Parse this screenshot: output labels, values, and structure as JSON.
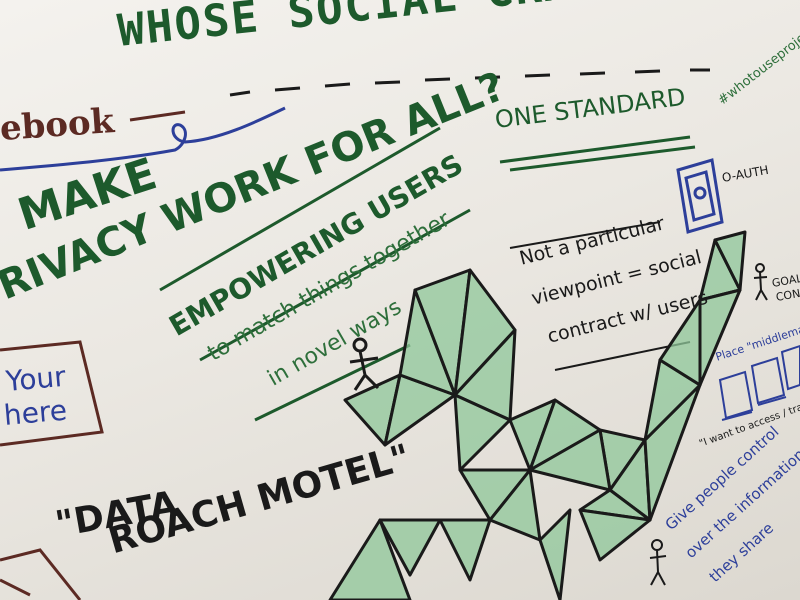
{
  "board": {
    "title": "WHOSE SOCIAL GRAPH IS IT?",
    "top_right_handle": "#whotouseproject",
    "facebook_fragment": "ebook",
    "privacy_heading_line1": "MAKE",
    "privacy_heading_line2": "RIVACY WORK FOR ALL?",
    "one_standard": "ONE STANDARD",
    "oauth_label": "O-AUTH",
    "empowering_title": "EMPOWERING USERS",
    "empowering_line2": "to match things together",
    "empowering_line3": "in novel ways",
    "viewpoint_line1": "Not a particular",
    "viewpoint_line2": "viewpoint = social",
    "viewpoint_line3": "contract w/ users",
    "goal_label": "GOAL",
    "goal_sub": "CONN",
    "middleman_note": "Place \"middleman\" to",
    "access_quote": "\"I want to access / transform",
    "your_here_line1": "Your",
    "your_here_line2": "here",
    "data_roach_line1": "\"DATA",
    "data_roach_line2": "ROACH MOTEL\"",
    "control_line1": "Give people control",
    "control_line2": "over the information",
    "control_line3": "they share"
  },
  "colors": {
    "paper": "#f0ede8",
    "green_ink": "#1d5a2c",
    "green_fill": "#8fc79a",
    "blue_ink": "#2d3f9a",
    "brown_ink": "#5c2a23"
  }
}
